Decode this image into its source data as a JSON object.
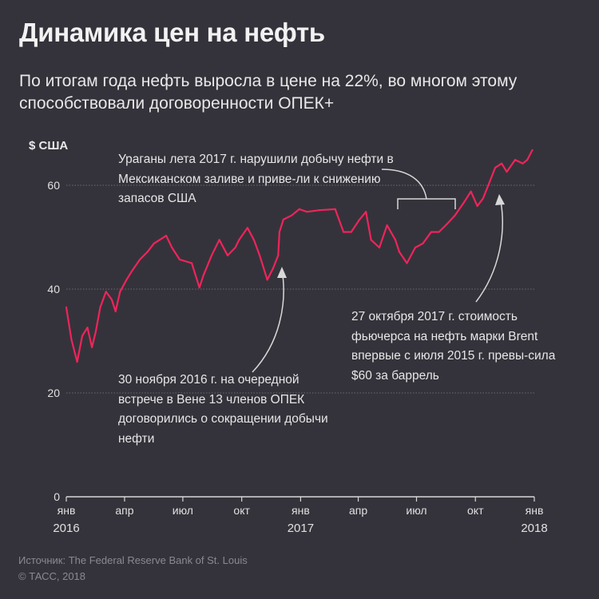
{
  "header": {
    "title": "Динамика цен на нефть",
    "subtitle": "По итогам года нефть выросла в цене на 22%, во многом этому способствовали договоренности ОПЕК+"
  },
  "annotations": [
    {
      "text": "Ураганы лета 2017 г. нарушили добычу нефти в Мексиканском заливе и приве-ли к снижению запасов США"
    },
    {
      "text": "30 ноября 2016 г. на очередной встрече в Вене 13 членов ОПЕК договорились о сокращении добычи нефти"
    },
    {
      "text": "27 октября 2017 г. стоимость фьючерса на нефть марки Brent впервые с июля 2015 г. превы-сила $60 за баррель"
    }
  ],
  "footer": {
    "source": "Источник: The Federal Reserve Bank of St. Louis",
    "copyright": "© ТАСС, 2018"
  },
  "chart_data": {
    "type": "line",
    "ylabel": "$ США",
    "ylim": [
      0,
      70
    ],
    "yticks": [
      0,
      20,
      40,
      60
    ],
    "xlim": [
      "2016-01-01",
      "2018-01-01"
    ],
    "xticks": [
      {
        "date": "2016-01-01",
        "label": "янв",
        "year": "2016"
      },
      {
        "date": "2016-04-01",
        "label": "апр",
        "year": ""
      },
      {
        "date": "2016-07-01",
        "label": "июл",
        "year": ""
      },
      {
        "date": "2016-10-01",
        "label": "окт",
        "year": ""
      },
      {
        "date": "2017-01-01",
        "label": "янв",
        "year": "2017"
      },
      {
        "date": "2017-04-01",
        "label": "апр",
        "year": ""
      },
      {
        "date": "2017-07-01",
        "label": "июл",
        "year": ""
      },
      {
        "date": "2017-10-01",
        "label": "окт",
        "year": ""
      },
      {
        "date": "2018-01-01",
        "label": "янв",
        "year": "2018"
      }
    ],
    "grid": true,
    "line_color": "#f0245a",
    "series": [
      {
        "points": [
          [
            "2016-01-01",
            36.5
          ],
          [
            "2016-01-09",
            30.3
          ],
          [
            "2016-01-18",
            26.0
          ],
          [
            "2016-01-26",
            31.0
          ],
          [
            "2016-02-03",
            32.6
          ],
          [
            "2016-02-10",
            28.8
          ],
          [
            "2016-02-16",
            31.8
          ],
          [
            "2016-02-23",
            36.5
          ],
          [
            "2016-03-03",
            39.5
          ],
          [
            "2016-03-12",
            38.0
          ],
          [
            "2016-03-18",
            35.7
          ],
          [
            "2016-03-25",
            39.5
          ],
          [
            "2016-04-04",
            41.8
          ],
          [
            "2016-04-12",
            43.4
          ],
          [
            "2016-04-25",
            45.7
          ],
          [
            "2016-05-07",
            47.2
          ],
          [
            "2016-05-17",
            48.8
          ],
          [
            "2016-05-26",
            49.5
          ],
          [
            "2016-06-05",
            50.3
          ],
          [
            "2016-06-14",
            48.0
          ],
          [
            "2016-06-26",
            45.7
          ],
          [
            "2016-07-15",
            45.0
          ],
          [
            "2016-07-27",
            40.3
          ],
          [
            "2016-08-02",
            42.6
          ],
          [
            "2016-08-15",
            46.5
          ],
          [
            "2016-08-27",
            49.5
          ],
          [
            "2016-09-09",
            46.5
          ],
          [
            "2016-09-21",
            48.0
          ],
          [
            "2016-09-27",
            49.5
          ],
          [
            "2016-10-10",
            51.8
          ],
          [
            "2016-10-20",
            49.5
          ],
          [
            "2016-10-29",
            46.5
          ],
          [
            "2016-11-10",
            41.8
          ],
          [
            "2016-11-19",
            44.0
          ],
          [
            "2016-11-27",
            46.5
          ],
          [
            "2016-11-29",
            51.0
          ],
          [
            "2016-12-05",
            53.4
          ],
          [
            "2016-12-18",
            54.2
          ],
          [
            "2016-12-30",
            55.4
          ],
          [
            "2017-01-11",
            54.9
          ],
          [
            "2017-01-30",
            55.2
          ],
          [
            "2017-02-24",
            55.4
          ],
          [
            "2017-03-09",
            51.0
          ],
          [
            "2017-03-21",
            51.0
          ],
          [
            "2017-04-03",
            53.4
          ],
          [
            "2017-04-13",
            54.9
          ],
          [
            "2017-04-21",
            49.5
          ],
          [
            "2017-05-04",
            48.0
          ],
          [
            "2017-05-16",
            52.3
          ],
          [
            "2017-05-29",
            49.5
          ],
          [
            "2017-06-04",
            47.2
          ],
          [
            "2017-06-16",
            45.0
          ],
          [
            "2017-06-29",
            48.0
          ],
          [
            "2017-07-11",
            48.8
          ],
          [
            "2017-07-24",
            51.0
          ],
          [
            "2017-08-05",
            51.0
          ],
          [
            "2017-08-18",
            52.6
          ],
          [
            "2017-08-30",
            54.2
          ],
          [
            "2017-09-12",
            56.5
          ],
          [
            "2017-09-24",
            58.8
          ],
          [
            "2017-10-04",
            56.0
          ],
          [
            "2017-10-13",
            57.5
          ],
          [
            "2017-10-22",
            60.3
          ],
          [
            "2017-11-01",
            63.4
          ],
          [
            "2017-11-11",
            64.2
          ],
          [
            "2017-11-19",
            62.6
          ],
          [
            "2017-12-02",
            64.9
          ],
          [
            "2017-12-14",
            64.2
          ],
          [
            "2017-12-21",
            64.9
          ],
          [
            "2017-12-29",
            66.8
          ]
        ]
      }
    ]
  }
}
